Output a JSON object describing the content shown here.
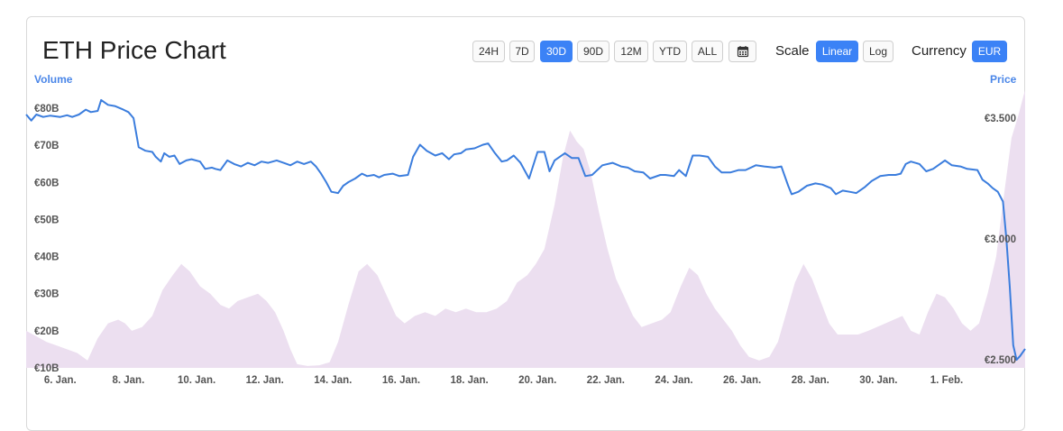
{
  "header": {
    "title": "ETH Price Chart"
  },
  "range_buttons": [
    {
      "label": "24H",
      "active": false
    },
    {
      "label": "7D",
      "active": false
    },
    {
      "label": "30D",
      "active": true
    },
    {
      "label": "90D",
      "active": false
    },
    {
      "label": "12M",
      "active": false
    },
    {
      "label": "YTD",
      "active": false
    },
    {
      "label": "ALL",
      "active": false
    }
  ],
  "calendar_icon": "calendar-icon",
  "scale": {
    "label": "Scale",
    "options": [
      {
        "label": "Linear",
        "active": true
      },
      {
        "label": "Log",
        "active": false
      }
    ]
  },
  "currency": {
    "label": "Currency",
    "options": [
      {
        "label": "EUR",
        "active": true
      }
    ]
  },
  "colors": {
    "price_line": "#3b7ddd",
    "volume_fill": "#ecdff0",
    "accent": "#3b82f6"
  },
  "chart_data": {
    "type": "line",
    "title": "ETH Price Chart",
    "xlabel": "",
    "ylabel_left": "Volume",
    "ylabel_right": "Price",
    "x_ticks": [
      "6. Jan.",
      "8. Jan.",
      "10. Jan.",
      "12. Jan.",
      "14. Jan.",
      "16. Jan.",
      "18. Jan.",
      "20. Jan.",
      "22. Jan.",
      "24. Jan.",
      "26. Jan.",
      "28. Jan.",
      "30. Jan.",
      "1. Feb."
    ],
    "volume_ticks": [
      "€80B",
      "€70B",
      "€60B",
      "€50B",
      "€40B",
      "€30B",
      "€20B",
      "€10B"
    ],
    "price_ticks": [
      "€3.500",
      "€3.000",
      "€2.500"
    ],
    "volume_ylim": [
      10,
      80
    ],
    "price_ylim": [
      2500,
      3500
    ],
    "x_range": [
      5.0,
      34.3
    ],
    "series": [
      {
        "name": "Price",
        "points": [
          [
            5.0,
            3515
          ],
          [
            5.15,
            3490
          ],
          [
            5.3,
            3515
          ],
          [
            5.5,
            3505
          ],
          [
            5.7,
            3510
          ],
          [
            6.0,
            3505
          ],
          [
            6.2,
            3512
          ],
          [
            6.35,
            3505
          ],
          [
            6.55,
            3515
          ],
          [
            6.75,
            3535
          ],
          [
            6.9,
            3525
          ],
          [
            7.1,
            3530
          ],
          [
            7.2,
            3575
          ],
          [
            7.4,
            3555
          ],
          [
            7.6,
            3550
          ],
          [
            7.85,
            3535
          ],
          [
            8.0,
            3525
          ],
          [
            8.15,
            3500
          ],
          [
            8.3,
            3380
          ],
          [
            8.5,
            3365
          ],
          [
            8.7,
            3360
          ],
          [
            8.8,
            3340
          ],
          [
            8.95,
            3320
          ],
          [
            9.05,
            3355
          ],
          [
            9.2,
            3340
          ],
          [
            9.35,
            3345
          ],
          [
            9.5,
            3310
          ],
          [
            9.7,
            3325
          ],
          [
            9.85,
            3330
          ],
          [
            10.1,
            3320
          ],
          [
            10.25,
            3290
          ],
          [
            10.45,
            3295
          ],
          [
            10.55,
            3290
          ],
          [
            10.7,
            3285
          ],
          [
            10.9,
            3325
          ],
          [
            11.1,
            3310
          ],
          [
            11.3,
            3300
          ],
          [
            11.5,
            3315
          ],
          [
            11.7,
            3305
          ],
          [
            11.9,
            3320
          ],
          [
            12.1,
            3315
          ],
          [
            12.35,
            3325
          ],
          [
            12.55,
            3315
          ],
          [
            12.75,
            3305
          ],
          [
            12.95,
            3320
          ],
          [
            13.15,
            3310
          ],
          [
            13.35,
            3320
          ],
          [
            13.5,
            3300
          ],
          [
            13.65,
            3270
          ],
          [
            13.8,
            3235
          ],
          [
            13.95,
            3195
          ],
          [
            14.15,
            3190
          ],
          [
            14.3,
            3220
          ],
          [
            14.45,
            3235
          ],
          [
            14.65,
            3250
          ],
          [
            14.85,
            3270
          ],
          [
            15.0,
            3260
          ],
          [
            15.2,
            3265
          ],
          [
            15.35,
            3255
          ],
          [
            15.5,
            3265
          ],
          [
            15.75,
            3270
          ],
          [
            15.95,
            3260
          ],
          [
            16.2,
            3265
          ],
          [
            16.35,
            3340
          ],
          [
            16.55,
            3390
          ],
          [
            16.75,
            3365
          ],
          [
            17.0,
            3345
          ],
          [
            17.2,
            3355
          ],
          [
            17.4,
            3330
          ],
          [
            17.55,
            3350
          ],
          [
            17.75,
            3355
          ],
          [
            17.9,
            3370
          ],
          [
            18.15,
            3375
          ],
          [
            18.4,
            3390
          ],
          [
            18.55,
            3395
          ],
          [
            18.75,
            3355
          ],
          [
            18.95,
            3320
          ],
          [
            19.1,
            3325
          ],
          [
            19.3,
            3345
          ],
          [
            19.5,
            3315
          ],
          [
            19.75,
            3250
          ],
          [
            20.0,
            3360
          ],
          [
            20.2,
            3360
          ],
          [
            20.35,
            3280
          ],
          [
            20.5,
            3325
          ],
          [
            20.65,
            3340
          ],
          [
            20.8,
            3355
          ],
          [
            21.0,
            3335
          ],
          [
            21.2,
            3335
          ],
          [
            21.4,
            3260
          ],
          [
            21.6,
            3265
          ],
          [
            21.9,
            3305
          ],
          [
            22.2,
            3315
          ],
          [
            22.45,
            3300
          ],
          [
            22.65,
            3295
          ],
          [
            22.85,
            3280
          ],
          [
            23.1,
            3275
          ],
          [
            23.3,
            3250
          ],
          [
            23.6,
            3265
          ],
          [
            23.75,
            3265
          ],
          [
            24.0,
            3260
          ],
          [
            24.15,
            3285
          ],
          [
            24.35,
            3260
          ],
          [
            24.55,
            3345
          ],
          [
            24.75,
            3345
          ],
          [
            25.0,
            3340
          ],
          [
            25.2,
            3300
          ],
          [
            25.4,
            3275
          ],
          [
            25.65,
            3275
          ],
          [
            25.9,
            3285
          ],
          [
            26.1,
            3285
          ],
          [
            26.4,
            3305
          ],
          [
            26.65,
            3300
          ],
          [
            26.95,
            3295
          ],
          [
            27.15,
            3300
          ],
          [
            27.35,
            3220
          ],
          [
            27.45,
            3185
          ],
          [
            27.65,
            3195
          ],
          [
            27.9,
            3220
          ],
          [
            28.15,
            3230
          ],
          [
            28.35,
            3225
          ],
          [
            28.6,
            3210
          ],
          [
            28.75,
            3185
          ],
          [
            28.95,
            3200
          ],
          [
            29.15,
            3195
          ],
          [
            29.35,
            3190
          ],
          [
            29.6,
            3215
          ],
          [
            29.8,
            3240
          ],
          [
            30.05,
            3260
          ],
          [
            30.3,
            3265
          ],
          [
            30.5,
            3265
          ],
          [
            30.65,
            3270
          ],
          [
            30.8,
            3310
          ],
          [
            30.95,
            3320
          ],
          [
            31.2,
            3310
          ],
          [
            31.4,
            3280
          ],
          [
            31.6,
            3290
          ],
          [
            31.8,
            3310
          ],
          [
            31.95,
            3325
          ],
          [
            32.15,
            3305
          ],
          [
            32.4,
            3300
          ],
          [
            32.6,
            3290
          ],
          [
            32.9,
            3285
          ],
          [
            33.05,
            3245
          ],
          [
            33.2,
            3230
          ],
          [
            33.35,
            3210
          ],
          [
            33.5,
            3195
          ],
          [
            33.65,
            3155
          ],
          [
            33.75,
            3000
          ],
          [
            33.85,
            2800
          ],
          [
            33.95,
            2560
          ],
          [
            34.05,
            2500
          ],
          [
            34.15,
            2515
          ],
          [
            34.3,
            2545
          ]
        ]
      },
      {
        "name": "Volume",
        "points": [
          [
            5.0,
            20
          ],
          [
            5.3,
            18.5
          ],
          [
            5.6,
            17
          ],
          [
            5.9,
            16
          ],
          [
            6.2,
            15
          ],
          [
            6.5,
            14
          ],
          [
            6.8,
            12
          ],
          [
            7.1,
            18
          ],
          [
            7.4,
            22
          ],
          [
            7.7,
            23
          ],
          [
            7.9,
            22
          ],
          [
            8.1,
            20
          ],
          [
            8.4,
            21
          ],
          [
            8.7,
            24
          ],
          [
            9.0,
            31
          ],
          [
            9.3,
            35
          ],
          [
            9.55,
            38
          ],
          [
            9.8,
            36
          ],
          [
            10.1,
            32
          ],
          [
            10.4,
            30
          ],
          [
            10.7,
            27
          ],
          [
            10.95,
            26
          ],
          [
            11.2,
            28
          ],
          [
            11.5,
            29
          ],
          [
            11.8,
            30
          ],
          [
            12.05,
            28
          ],
          [
            12.3,
            25
          ],
          [
            12.55,
            20
          ],
          [
            12.75,
            15
          ],
          [
            12.95,
            11
          ],
          [
            13.25,
            10.5
          ],
          [
            13.6,
            10.7
          ],
          [
            13.9,
            11.5
          ],
          [
            14.15,
            17
          ],
          [
            14.45,
            27
          ],
          [
            14.75,
            36
          ],
          [
            15.0,
            38
          ],
          [
            15.3,
            35
          ],
          [
            15.6,
            29
          ],
          [
            15.85,
            24
          ],
          [
            16.1,
            22
          ],
          [
            16.4,
            24
          ],
          [
            16.7,
            25
          ],
          [
            17.0,
            24
          ],
          [
            17.3,
            26
          ],
          [
            17.6,
            25
          ],
          [
            17.9,
            26
          ],
          [
            18.2,
            25
          ],
          [
            18.5,
            25
          ],
          [
            18.8,
            26
          ],
          [
            19.1,
            28
          ],
          [
            19.4,
            33
          ],
          [
            19.7,
            35
          ],
          [
            19.95,
            38
          ],
          [
            20.2,
            42
          ],
          [
            20.5,
            54
          ],
          [
            20.75,
            67
          ],
          [
            20.95,
            74
          ],
          [
            21.15,
            71
          ],
          [
            21.35,
            69
          ],
          [
            21.55,
            63
          ],
          [
            21.8,
            52
          ],
          [
            22.05,
            42
          ],
          [
            22.3,
            34
          ],
          [
            22.55,
            29
          ],
          [
            22.8,
            24
          ],
          [
            23.05,
            21
          ],
          [
            23.35,
            22
          ],
          [
            23.65,
            23
          ],
          [
            23.9,
            25
          ],
          [
            24.2,
            32
          ],
          [
            24.45,
            37
          ],
          [
            24.7,
            35
          ],
          [
            24.95,
            30
          ],
          [
            25.2,
            26
          ],
          [
            25.45,
            23
          ],
          [
            25.7,
            20
          ],
          [
            25.95,
            16
          ],
          [
            26.2,
            13
          ],
          [
            26.5,
            12
          ],
          [
            26.8,
            13
          ],
          [
            27.05,
            17
          ],
          [
            27.3,
            25
          ],
          [
            27.55,
            33
          ],
          [
            27.8,
            38
          ],
          [
            28.05,
            34
          ],
          [
            28.3,
            28
          ],
          [
            28.55,
            22
          ],
          [
            28.8,
            19
          ],
          [
            29.1,
            19
          ],
          [
            29.4,
            19
          ],
          [
            29.7,
            20
          ],
          [
            29.95,
            21
          ],
          [
            30.2,
            22
          ],
          [
            30.45,
            23
          ],
          [
            30.7,
            24
          ],
          [
            30.95,
            20
          ],
          [
            31.2,
            19
          ],
          [
            31.45,
            25
          ],
          [
            31.7,
            30
          ],
          [
            31.95,
            29
          ],
          [
            32.2,
            26
          ],
          [
            32.45,
            22
          ],
          [
            32.7,
            20
          ],
          [
            32.95,
            22
          ],
          [
            33.2,
            30
          ],
          [
            33.45,
            40
          ],
          [
            33.7,
            58
          ],
          [
            33.9,
            72
          ],
          [
            34.1,
            78
          ],
          [
            34.3,
            85
          ]
        ]
      }
    ]
  }
}
